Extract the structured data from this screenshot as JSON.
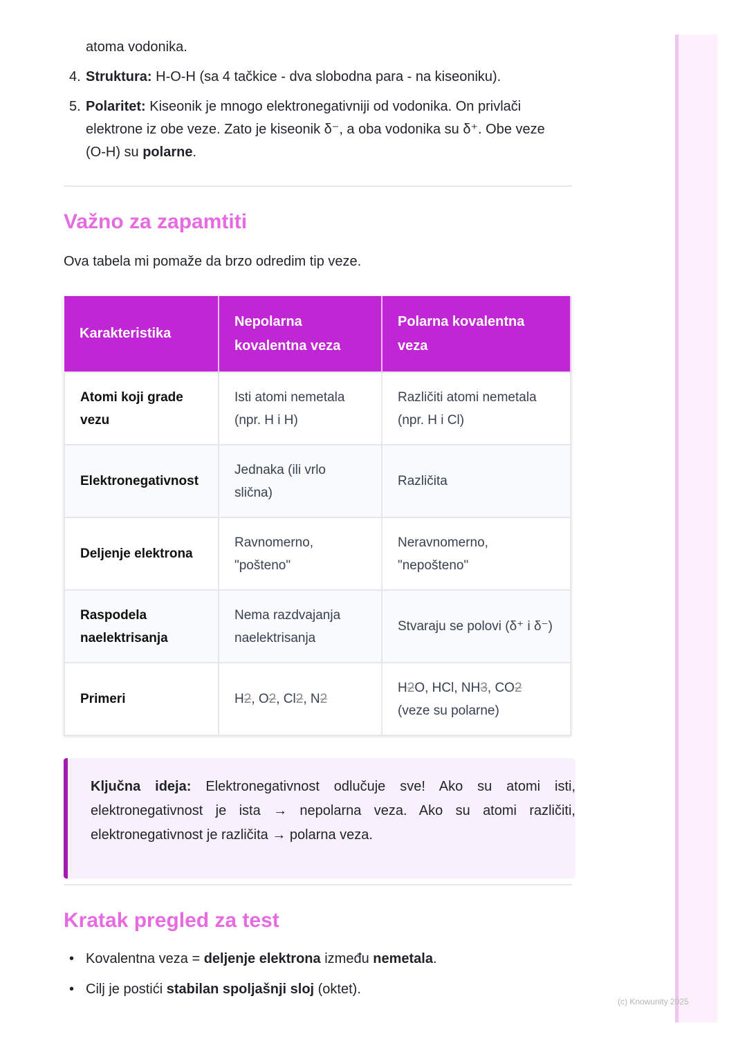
{
  "list": {
    "cont": "atoma vodonika.",
    "items": [
      {
        "num": "4.",
        "label": "Struktura:",
        "text": " H-O-H (sa 4 tačkice - dva slobodna para - na kiseoniku)."
      },
      {
        "num": "5.",
        "label": "Polaritet:",
        "text": " Kiseonik je mnogo elektronegativniji od vodonika. On privlači elektrone iz obe veze. Zato je kiseonik δ⁻, a oba vodonika su δ⁺. Obe veze (O-H) su ",
        "bold": "polarne",
        "end": "."
      }
    ]
  },
  "section1": {
    "title": "Važno za zapamtiti",
    "intro": "Ova tabela mi pomaže da brzo odredim tip veze."
  },
  "table": {
    "headers": [
      "Karakteristika",
      "Nepolarna kovalentna veza",
      "Polarna kovalentna veza"
    ],
    "rows": [
      [
        "Atomi koji grade vezu",
        "Isti atomi nemetala (npr. H i H)",
        "Različiti atomi nemetala (npr. H i Cl)"
      ],
      [
        "Elektronegativnost",
        "Jednaka (ili vrlo slična)",
        "Različita"
      ],
      [
        "Deljenje elektrona",
        "Ravnomerno, \"pošteno\"",
        "Neravnomerno, \"nepošteno\""
      ],
      [
        "Raspodela naelektrisanja",
        "Nema razdvajanja naelektrisanja",
        "Stvaraju se polovi (δ⁺ i δ⁻)"
      ],
      [
        "Primeri",
        "H2, O2, Cl2, N2",
        "H2O, HCl, NH3, CO2 (veze su polarne)"
      ]
    ]
  },
  "callout": {
    "label": "Ključna ideja:",
    "text": " Elektronegativnost odlučuje sve! Ako su atomi isti, elektronegativnost je ista → nepolarna veza. Ako su atomi različiti, elektronegativnost je različita → polarna veza."
  },
  "section2": {
    "title": "Kratak pregled za test",
    "bullets": [
      {
        "a": "Kovalentna veza = ",
        "b": "deljenje elektrona",
        "c": " između ",
        "d": "nemetala",
        "e": "."
      },
      {
        "a": "Cilj je postići ",
        "b": "stabilan spoljašnji sloj",
        "c": " (oktet).",
        "d": "",
        "e": ""
      }
    ]
  },
  "footer": "(c) Knowunity 2025"
}
